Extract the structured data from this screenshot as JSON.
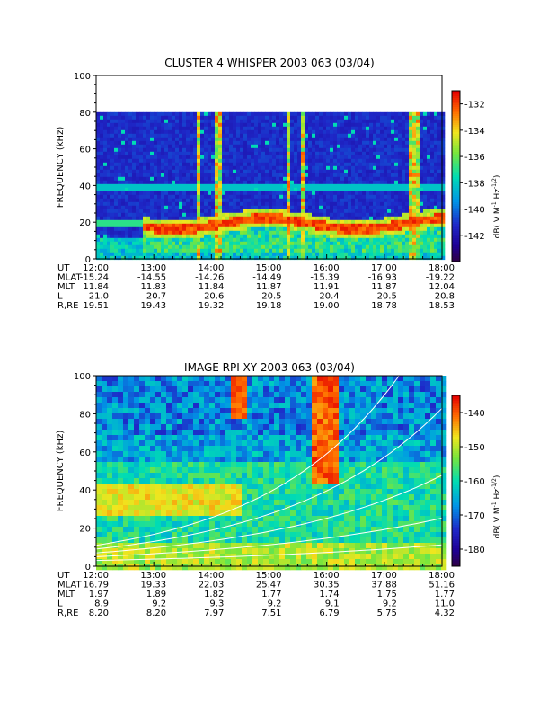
{
  "chart_data": [
    {
      "type": "heatmap",
      "title": "CLUSTER 4 WHISPER 2003 063 (03/04)",
      "ylabel": "FREQUENCY (kHz)",
      "ylim": [
        0,
        100
      ],
      "y_ticks": [
        "0",
        "20",
        "40",
        "60",
        "80",
        "100"
      ],
      "data_top_khz": 80,
      "colorbar": {
        "label": "dB( V M",
        "superscript": "-1",
        "label_hz": " Hz",
        "hz_superscript": "-1/2",
        "label_close": ")",
        "range": [
          -144,
          -131
        ],
        "ticks": [
          "-132",
          "-134",
          "-136",
          "-138",
          "-140",
          "-142"
        ],
        "tick_values": [
          -132,
          -134,
          -136,
          -138,
          -140,
          -142
        ]
      },
      "features": {
        "band_khz": 20,
        "band_start_hour": 12.75,
        "thin_band_khz": 39,
        "vertical_bursts_hours": [
          13.75,
          14.1,
          15.3,
          15.55,
          17.45,
          17.55
        ]
      },
      "row_labels": [
        "UT",
        "MLAT",
        "MLT",
        "L",
        "R,RE"
      ],
      "columns": [
        {
          "UT": "12:00",
          "MLAT": "-15.24",
          "MLT": "11.84",
          "L": "21.0",
          "R,RE": "19.51"
        },
        {
          "UT": "13:00",
          "MLAT": "-14.55",
          "MLT": "11.83",
          "L": "20.7",
          "R,RE": "19.43"
        },
        {
          "UT": "14:00",
          "MLAT": "-14.26",
          "MLT": "11.84",
          "L": "20.6",
          "R,RE": "19.32"
        },
        {
          "UT": "15:00",
          "MLAT": "-14.49",
          "MLT": "11.87",
          "L": "20.5",
          "R,RE": "19.18"
        },
        {
          "UT": "16:00",
          "MLAT": "-15.39",
          "MLT": "11.91",
          "L": "20.4",
          "R,RE": "19.00"
        },
        {
          "UT": "17:00",
          "MLAT": "-16.93",
          "MLT": "11.87",
          "L": "20.5",
          "R,RE": "18.78"
        },
        {
          "UT": "18:00",
          "MLAT": "-19.22",
          "MLT": "12.04",
          "L": "20.8",
          "R,RE": "18.53"
        }
      ]
    },
    {
      "type": "heatmap",
      "title": "IMAGE RPI XY 2003 063 (03/04)",
      "ylabel": "FREQUENCY (kHz)",
      "ylim": [
        0,
        100
      ],
      "y_ticks": [
        "0",
        "20",
        "40",
        "60",
        "80",
        "100"
      ],
      "colorbar": {
        "label": "dB( V M",
        "superscript": "-1",
        "label_hz": " Hz",
        "hz_superscript": "-1/2",
        "label_close": ")",
        "range": [
          -185,
          -135
        ],
        "ticks": [
          "-140",
          "-150",
          "-160",
          "-170",
          "-180"
        ],
        "tick_values": [
          -140,
          -150,
          -160,
          -170,
          -180
        ]
      },
      "features": {
        "burst_hour": 15.95,
        "burst_min_khz": 45,
        "lowband_khz": [
          28,
          45
        ]
      },
      "row_labels": [
        "UT",
        "MLAT",
        "MLT",
        "L",
        "R,RE"
      ],
      "columns": [
        {
          "UT": "12:00",
          "MLAT": "16.79",
          "MLT": "1.97",
          "L": "8.9",
          "R,RE": "8.20"
        },
        {
          "UT": "13:00",
          "MLAT": "19.33",
          "MLT": "1.89",
          "L": "9.2",
          "R,RE": "8.20"
        },
        {
          "UT": "14:00",
          "MLAT": "22.03",
          "MLT": "1.82",
          "L": "9.3",
          "R,RE": "7.97"
        },
        {
          "UT": "15:00",
          "MLAT": "25.47",
          "MLT": "1.77",
          "L": "9.2",
          "R,RE": "7.51"
        },
        {
          "UT": "16:00",
          "MLAT": "30.35",
          "MLT": "1.74",
          "L": "9.1",
          "R,RE": "6.79"
        },
        {
          "UT": "17:00",
          "MLAT": "37.88",
          "MLT": "1.75",
          "L": "9.2",
          "R,RE": "5.75"
        },
        {
          "UT": "18:00",
          "MLAT": "51.16",
          "MLT": "1.77",
          "L": "11.0",
          "R,RE": "4.32"
        }
      ]
    }
  ]
}
